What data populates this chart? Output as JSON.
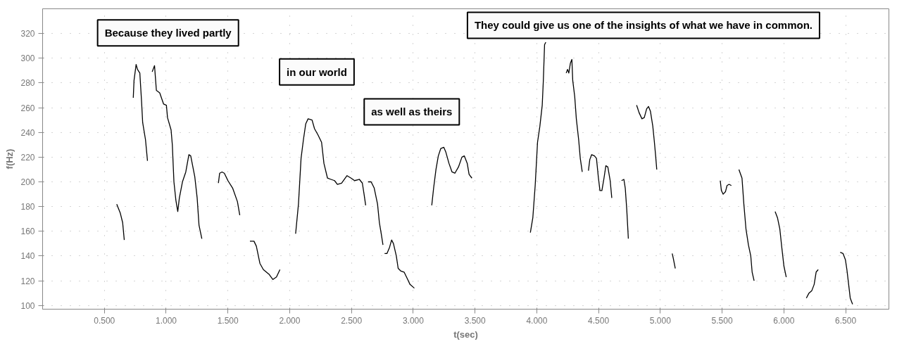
{
  "chart_data": {
    "type": "line",
    "xlabel": "t(sec)",
    "ylabel": "f(Hz)",
    "annotations": [
      "Because they lived partly",
      "in our world",
      "as well as theirs",
      "They could give us one of the insights of what we have in common."
    ],
    "xlim": [
      0,
      6.85
    ],
    "ylim": [
      97,
      340
    ],
    "xticks": [
      {
        "value": 0.5,
        "label": "0.500"
      },
      {
        "value": 1,
        "label": "1.000"
      },
      {
        "value": 1.5,
        "label": "1.500"
      },
      {
        "value": 2,
        "label": "2.000"
      },
      {
        "value": 2.5,
        "label": "2.500"
      },
      {
        "value": 3,
        "label": "3.000"
      },
      {
        "value": 3.5,
        "label": "3.500"
      },
      {
        "value": 4,
        "label": "4.000"
      },
      {
        "value": 4.5,
        "label": "4.500"
      },
      {
        "value": 5,
        "label": "5.000"
      },
      {
        "value": 5.5,
        "label": "5.500"
      },
      {
        "value": 6,
        "label": "6.000"
      },
      {
        "value": 6.5,
        "label": "6.500"
      }
    ],
    "yticks": [
      100,
      120,
      140,
      160,
      180,
      200,
      220,
      240,
      260,
      280,
      300,
      320
    ],
    "grid": true,
    "line_style": "solid",
    "series": [
      {
        "color": "#000000",
        "x": [
          0.6,
          0.628,
          0.648,
          0.661
        ],
        "values": [
          182,
          175,
          167,
          153
        ]
      },
      {
        "color": "#000000",
        "x": [
          0.734,
          0.74,
          0.757,
          0.768,
          0.787,
          0.801,
          0.81,
          0.833,
          0.849
        ],
        "values": [
          268,
          282,
          295,
          291,
          288,
          265,
          248,
          234,
          217
        ]
      },
      {
        "color": "#000000",
        "x": [
          0.887,
          0.906,
          0.921,
          0.948,
          0.979,
          1.002,
          1.011,
          1.04,
          1.05,
          1.063,
          1.079,
          1.094,
          1.107,
          1.132,
          1.159,
          1.184,
          1.199,
          1.232,
          1.251,
          1.266,
          1.289
        ],
        "values": [
          289,
          294,
          274,
          272,
          263,
          262,
          252,
          242,
          230,
          200,
          185,
          176,
          187,
          200,
          208,
          222,
          221,
          204,
          187,
          165,
          154
        ]
      },
      {
        "color": "#000000",
        "x": [
          1.423,
          1.433,
          1.452,
          1.471,
          1.5,
          1.538,
          1.577,
          1.596
        ],
        "values": [
          199,
          207,
          208,
          207,
          201,
          195,
          184,
          173
        ]
      },
      {
        "color": "#000000",
        "x": [
          1.678,
          1.711,
          1.73,
          1.759,
          1.787,
          1.835,
          1.864,
          1.893,
          1.921
        ],
        "values": [
          152,
          152,
          148,
          134,
          129,
          125,
          121,
          123,
          129
        ]
      },
      {
        "color": "#000000",
        "x": [
          2.048,
          2.071,
          2.092,
          2.111,
          2.13,
          2.149,
          2.181,
          2.201,
          2.229,
          2.258,
          2.277,
          2.306,
          2.334,
          2.363,
          2.386,
          2.42,
          2.464,
          2.497,
          2.525,
          2.564,
          2.588,
          2.602,
          2.615
        ],
        "values": [
          158,
          182,
          219,
          234,
          247,
          251,
          250,
          243,
          238,
          232,
          215,
          203,
          202,
          201,
          198,
          199,
          205,
          203,
          201,
          202,
          199,
          190,
          181
        ]
      },
      {
        "color": "#000000",
        "x": [
          2.634,
          2.659,
          2.684,
          2.711,
          2.726,
          2.741,
          2.755
        ],
        "values": [
          200,
          200,
          195,
          182,
          167,
          158,
          149
        ]
      },
      {
        "color": "#000000",
        "x": [
          2.768,
          2.787,
          2.808,
          2.825,
          2.84,
          2.863,
          2.878,
          2.898,
          2.926,
          2.955,
          2.974,
          3.009
        ],
        "values": [
          142,
          142,
          147,
          153,
          150,
          140,
          130,
          128,
          127,
          121,
          117,
          114
        ]
      },
      {
        "color": "#000000",
        "x": [
          3.15,
          3.165,
          3.184,
          3.203,
          3.223,
          3.247,
          3.264,
          3.289,
          3.314,
          3.337,
          3.366,
          3.394,
          3.413,
          3.437,
          3.452,
          3.475
        ],
        "values": [
          181,
          195,
          210,
          221,
          227,
          228,
          224,
          215,
          208,
          207,
          212,
          220,
          221,
          215,
          206,
          203
        ]
      },
      {
        "color": "#000000",
        "x": [
          3.948,
          3.968,
          3.987,
          4.006,
          4.025,
          4.044,
          4.053,
          4.063,
          4.073
        ],
        "values": [
          159,
          171,
          197,
          232,
          245,
          262,
          282,
          311,
          313
        ]
      },
      {
        "color": "#000000",
        "x": [
          4.238,
          4.249,
          4.259,
          4.272,
          4.284,
          4.291,
          4.307,
          4.32,
          4.339,
          4.352,
          4.368
        ],
        "values": [
          288,
          291,
          288,
          296,
          299,
          282,
          269,
          251,
          234,
          219,
          208
        ]
      },
      {
        "color": "#000000",
        "x": [
          4.418,
          4.429,
          4.444,
          4.467,
          4.483,
          4.498,
          4.511,
          4.527,
          4.544,
          4.559,
          4.575,
          4.594,
          4.607
        ],
        "values": [
          209,
          218,
          222,
          221,
          219,
          204,
          193,
          193,
          203,
          213,
          212,
          201,
          187
        ]
      },
      {
        "color": "#000000",
        "x": [
          4.686,
          4.705,
          4.716,
          4.728,
          4.741
        ],
        "values": [
          201,
          202,
          195,
          178,
          154
        ]
      },
      {
        "color": "#000000",
        "x": [
          4.808,
          4.828,
          4.851,
          4.87,
          4.889,
          4.904,
          4.92,
          4.939,
          4.952,
          4.962,
          4.971
        ],
        "values": [
          262,
          256,
          251,
          252,
          259,
          261,
          257,
          245,
          232,
          221,
          210
        ]
      },
      {
        "color": "#000000",
        "x": [
          5.096,
          5.105,
          5.121
        ],
        "values": [
          142,
          138,
          130
        ]
      },
      {
        "color": "#000000",
        "x": [
          5.485,
          5.494,
          5.508,
          5.527,
          5.54,
          5.556,
          5.575
        ],
        "values": [
          201,
          193,
          190,
          192,
          197,
          198,
          197
        ]
      },
      {
        "color": "#000000",
        "x": [
          5.636,
          5.661,
          5.676,
          5.693,
          5.713,
          5.732,
          5.743,
          5.759
        ],
        "values": [
          210,
          203,
          182,
          162,
          149,
          140,
          127,
          120
        ]
      },
      {
        "color": "#000000",
        "x": [
          5.929,
          5.948,
          5.967,
          5.983,
          6.0,
          6.019
        ],
        "values": [
          176,
          171,
          162,
          147,
          132,
          123
        ]
      },
      {
        "color": "#000000",
        "x": [
          6.182,
          6.203,
          6.226,
          6.245,
          6.261,
          6.278
        ],
        "values": [
          106,
          110,
          112,
          117,
          127,
          129
        ]
      },
      {
        "color": "#000000",
        "x": [
          6.456,
          6.479,
          6.498,
          6.51,
          6.523,
          6.537,
          6.556
        ],
        "values": [
          143,
          142,
          137,
          129,
          118,
          106,
          101
        ]
      }
    ]
  }
}
